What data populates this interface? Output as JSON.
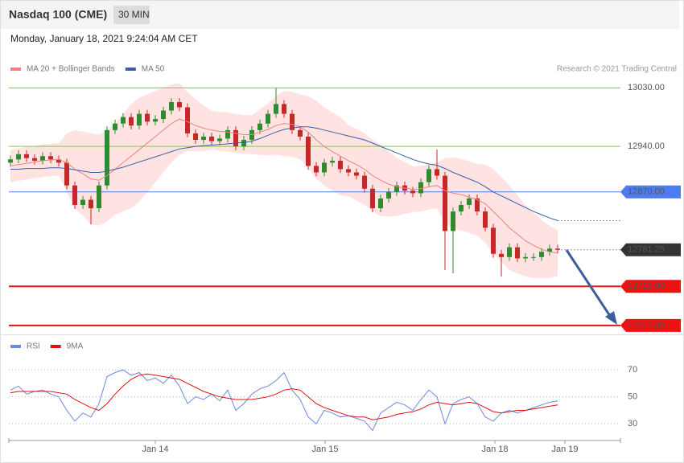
{
  "header": {
    "title": "Nasdaq 100 (CME)",
    "timeframe": "30 MIN",
    "date": "Monday, January 18, 2021 9:24:04 AM CET",
    "credit": "Research © 2021 Trading Central"
  },
  "chart_data": [
    {
      "type": "candlestick",
      "xlim": [
        -0.2,
        75.8
      ],
      "ylim": [
        12650,
        13050
      ],
      "up_color": "#2e8b2e",
      "down_color": "#c62828",
      "x": [
        0,
        1,
        2,
        3,
        4,
        5,
        6,
        7,
        8,
        9,
        10,
        11,
        12,
        13,
        14,
        15,
        16,
        17,
        18,
        19,
        20,
        21,
        22,
        23,
        24,
        25,
        26,
        27,
        28,
        29,
        30,
        31,
        32,
        33,
        34,
        35,
        36,
        37,
        38,
        39,
        40,
        41,
        42,
        43,
        44,
        45,
        46,
        47,
        48,
        49,
        50,
        51,
        52,
        53,
        54,
        55,
        56,
        57,
        58,
        59,
        60,
        61,
        62,
        63,
        64,
        65,
        66,
        67,
        68
      ],
      "open": [
        12915,
        12920,
        12928,
        12922,
        12918,
        12925,
        12920,
        12915,
        12880,
        12850,
        12858,
        12845,
        12880,
        12965,
        12975,
        12985,
        12972,
        12990,
        12978,
        12982,
        12995,
        13008,
        13000,
        12960,
        12950,
        12955,
        12948,
        12952,
        12965,
        12940,
        12950,
        12965,
        12975,
        12990,
        13005,
        12990,
        12965,
        12955,
        12910,
        12900,
        12915,
        12918,
        12905,
        12900,
        12895,
        12875,
        12845,
        12860,
        12870,
        12880,
        12872,
        12868,
        12885,
        12905,
        12895,
        12810,
        12840,
        12850,
        12860,
        12840,
        12815,
        12775,
        12770,
        12785,
        12768,
        12770,
        12770,
        12778,
        12783
      ],
      "high": [
        12926,
        12934,
        12934,
        12928,
        12931,
        12931,
        12926,
        12921,
        12886,
        12864,
        12864,
        12886,
        12971,
        12981,
        12991,
        12991,
        12996,
        12996,
        12988,
        13001,
        13014,
        13014,
        13006,
        12966,
        12961,
        12961,
        12958,
        12971,
        12971,
        12956,
        12971,
        12981,
        12996,
        13030,
        13011,
        12996,
        12971,
        12961,
        12916,
        12921,
        12924,
        12924,
        12911,
        12906,
        12901,
        12881,
        12866,
        12876,
        12886,
        12886,
        12878,
        12891,
        12911,
        12935,
        12901,
        12846,
        12856,
        12866,
        12866,
        12846,
        12821,
        12781,
        12791,
        12791,
        12776,
        12776,
        12784,
        12789,
        12789
      ],
      "low": [
        12909,
        12914,
        12916,
        12912,
        12912,
        12914,
        12909,
        12874,
        12844,
        12844,
        12820,
        12839,
        12874,
        12959,
        12969,
        12966,
        12966,
        12972,
        12972,
        12976,
        12989,
        12994,
        12954,
        12944,
        12944,
        12942,
        12942,
        12946,
        12934,
        12934,
        12944,
        12959,
        12969,
        12984,
        12984,
        12959,
        12949,
        12904,
        12894,
        12894,
        12909,
        12899,
        12894,
        12889,
        12869,
        12839,
        12839,
        12854,
        12864,
        12866,
        12862,
        12862,
        12879,
        12889,
        12750,
        12745,
        12834,
        12844,
        12834,
        12809,
        12769,
        12740,
        12764,
        12762,
        12762,
        12764,
        12764,
        12772,
        12775.25
      ],
      "close": [
        12920,
        12928,
        12922,
        12918,
        12925,
        12920,
        12915,
        12880,
        12850,
        12858,
        12845,
        12880,
        12965,
        12975,
        12985,
        12972,
        12990,
        12978,
        12982,
        12995,
        13008,
        13000,
        12960,
        12950,
        12955,
        12948,
        12952,
        12965,
        12940,
        12950,
        12965,
        12975,
        12990,
        13005,
        12990,
        12965,
        12955,
        12910,
        12900,
        12915,
        12918,
        12905,
        12900,
        12895,
        12875,
        12845,
        12860,
        12870,
        12880,
        12872,
        12868,
        12885,
        12905,
        12895,
        12810,
        12840,
        12850,
        12860,
        12840,
        12815,
        12775,
        12770,
        12785,
        12768,
        12770,
        12770,
        12778,
        12783,
        12781.25
      ],
      "band_color": "#ffdcdc",
      "series": [
        {
          "name": "MA 20 + Bollinger Bands",
          "color": "#f08080",
          "values": [
            12910,
            12912,
            12914,
            12916,
            12918,
            12919,
            12920,
            12915,
            12905,
            12898,
            12890,
            12888,
            12895,
            12905,
            12915,
            12925,
            12935,
            12945,
            12955,
            12965,
            12975,
            12982,
            12978,
            12972,
            12968,
            12965,
            12963,
            12962,
            12960,
            12958,
            12958,
            12962,
            12966,
            12972,
            12975,
            12974,
            12970,
            12962,
            12950,
            12940,
            12932,
            12925,
            12918,
            12912,
            12905,
            12895,
            12888,
            12882,
            12878,
            12876,
            12874,
            12875,
            12878,
            12880,
            12872,
            12868,
            12866,
            12862,
            12858,
            12852,
            12840,
            12828,
            12815,
            12805,
            12795,
            12788,
            12782,
            12778,
            12776
          ],
          "upper": [
            12935,
            12937,
            12939,
            12941,
            12943,
            12944,
            12945,
            12960,
            12965,
            12963,
            12960,
            12958,
            12965,
            12975,
            12990,
            13005,
            13015,
            13020,
            13025,
            13030,
            13035,
            13037,
            13023,
            13012,
            13003,
            12995,
            12993,
            12992,
            12990,
            12988,
            12988,
            12997,
            13006,
            13017,
            13025,
            13024,
            13020,
            13017,
            13010,
            13000,
            12992,
            12985,
            12973,
            12967,
            12960,
            12950,
            12943,
            12932,
            12923,
            12916,
            12909,
            12910,
            12913,
            12915,
            12922,
            12923,
            12921,
            12917,
            12913,
            12912,
            12905,
            12893,
            12880,
            12865,
            12850,
            12838,
            12827,
            12818,
            12811
          ],
          "lower": [
            12885,
            12887,
            12889,
            12891,
            12893,
            12894,
            12895,
            12870,
            12845,
            12833,
            12820,
            12818,
            12825,
            12835,
            12840,
            12845,
            12855,
            12870,
            12885,
            12900,
            12915,
            12927,
            12933,
            12932,
            12933,
            12935,
            12933,
            12932,
            12930,
            12928,
            12928,
            12927,
            12926,
            12927,
            12925,
            12924,
            12920,
            12907,
            12890,
            12880,
            12872,
            12865,
            12863,
            12857,
            12850,
            12840,
            12833,
            12832,
            12833,
            12836,
            12839,
            12840,
            12843,
            12845,
            12822,
            12813,
            12811,
            12807,
            12803,
            12792,
            12775,
            12763,
            12750,
            12745,
            12740,
            12738,
            12737,
            12738,
            12741
          ]
        },
        {
          "name": "MA 50",
          "color": "#3b5ea6",
          "values": [
            12905,
            12905,
            12906,
            12906,
            12906,
            12907,
            12907,
            12906,
            12904,
            12902,
            12900,
            12900,
            12902,
            12905,
            12908,
            12912,
            12916,
            12920,
            12924,
            12928,
            12932,
            12936,
            12938,
            12940,
            12941,
            12942,
            12943,
            12944,
            12945,
            12946,
            12948,
            12952,
            12957,
            12962,
            12966,
            12968,
            12970,
            12970,
            12968,
            12965,
            12962,
            12959,
            12956,
            12953,
            12950,
            12945,
            12940,
            12935,
            12930,
            12925,
            12920,
            12916,
            12913,
            12911,
            12906,
            12900,
            12895,
            12890,
            12885,
            12878,
            12870,
            12864,
            12858,
            12852,
            12846,
            12840,
            12835,
            12830,
            12826
          ]
        }
      ],
      "levels": [
        {
          "value": 13030,
          "label": "13030.00",
          "color": "#8bc34a",
          "style": "plain",
          "width": 1
        },
        {
          "value": 12940,
          "label": "12940.00",
          "color": "#8bc34a",
          "style": "plain",
          "width": 1
        },
        {
          "value": 12870,
          "label": "12870.00",
          "color": "#4d7cf0",
          "style": "boxed",
          "width": 1
        },
        {
          "value": 12781.25,
          "label": "12781.25",
          "color": "#333333",
          "style": "last",
          "width": 1
        },
        {
          "value": 12725,
          "label": "12725.00",
          "color": "#ee1111",
          "style": "boxed",
          "width": 2
        },
        {
          "value": 12665,
          "label": "12665.00",
          "color": "#ee1111",
          "style": "boxed",
          "width": 2
        }
      ]
    },
    {
      "type": "line",
      "xlim": [
        -0.2,
        75.8
      ],
      "ylim": [
        20,
        82
      ],
      "yticks": [
        30,
        50,
        70
      ],
      "xticks": [
        {
          "value": 18,
          "label": "Jan 14"
        },
        {
          "value": 39.1,
          "label": "Jan 15"
        },
        {
          "value": 60.2,
          "label": "Jan 18"
        },
        {
          "value": 68.9,
          "label": "Jan 19"
        }
      ],
      "series": [
        {
          "name": "RSI",
          "color": "#6a8be0",
          "values": [
            55,
            58,
            52,
            54,
            55,
            52,
            50,
            40,
            32,
            38,
            35,
            45,
            65,
            68,
            70,
            66,
            68,
            62,
            64,
            60,
            66,
            58,
            45,
            50,
            48,
            52,
            47,
            55,
            40,
            45,
            52,
            56,
            58,
            62,
            68,
            55,
            48,
            35,
            30,
            40,
            38,
            35,
            36,
            34,
            32,
            25,
            38,
            42,
            46,
            44,
            40,
            48,
            55,
            50,
            30,
            45,
            48,
            50,
            45,
            35,
            32,
            38,
            40,
            38,
            40,
            42,
            44,
            46,
            47
          ]
        },
        {
          "name": "9MA",
          "color": "#e01010",
          "values": [
            53,
            54,
            54,
            54,
            54,
            54,
            53,
            52,
            48,
            45,
            42,
            40,
            45,
            52,
            58,
            63,
            66,
            67,
            66,
            65,
            64,
            63,
            60,
            57,
            54,
            52,
            50,
            49,
            48,
            48,
            48,
            49,
            50,
            52,
            55,
            56,
            55,
            50,
            45,
            42,
            40,
            38,
            36,
            35,
            35,
            33,
            34,
            35,
            37,
            38,
            39,
            41,
            44,
            46,
            45,
            44,
            45,
            46,
            45,
            42,
            39,
            38,
            39,
            40,
            40,
            41,
            42,
            43,
            44
          ]
        }
      ]
    }
  ]
}
